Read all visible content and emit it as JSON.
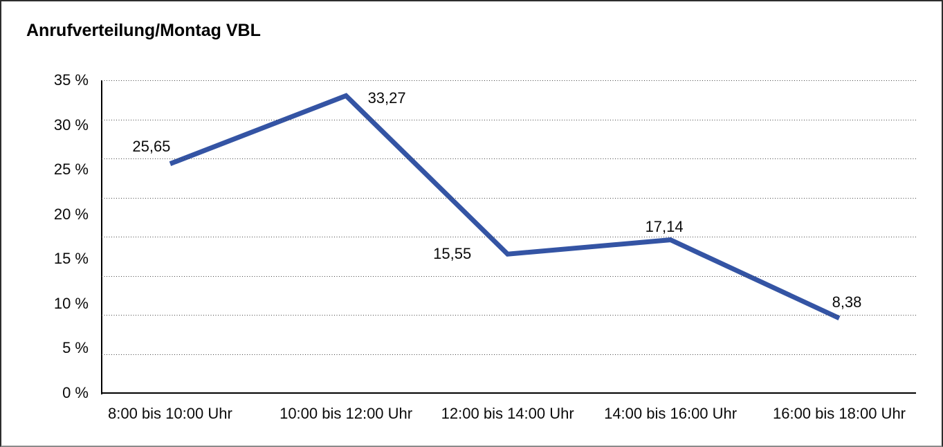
{
  "title": "Anrufverteilung/Montag VBL",
  "chart_data": {
    "type": "line",
    "title": "Anrufverteilung/Montag VBL",
    "categories": [
      "8:00 bis 10:00 Uhr",
      "10:00 bis 12:00 Uhr",
      "12:00 bis 14:00 Uhr",
      "14:00 bis 16:00 Uhr",
      "16:00 bis 18:00 Uhr"
    ],
    "values": [
      25.65,
      33.27,
      15.55,
      17.14,
      8.38
    ],
    "value_labels": [
      "25,65",
      "33,27",
      "15,55",
      "17,14",
      "8,38"
    ],
    "y_ticks": [
      "35 %",
      "30 %",
      "25 %",
      "20 %",
      "15 %",
      "10 %",
      "5 %",
      "0 %"
    ],
    "y_tick_values": [
      35,
      30,
      25,
      20,
      15,
      10,
      5,
      0
    ],
    "ylim": [
      0,
      35
    ],
    "xlabel": "",
    "ylabel": "",
    "legend": "none",
    "grid": "horizontal-dotted",
    "gridline_intervals": 8,
    "line_color": "#3454a4",
    "line_width": 7,
    "axis_color": "#000000"
  }
}
